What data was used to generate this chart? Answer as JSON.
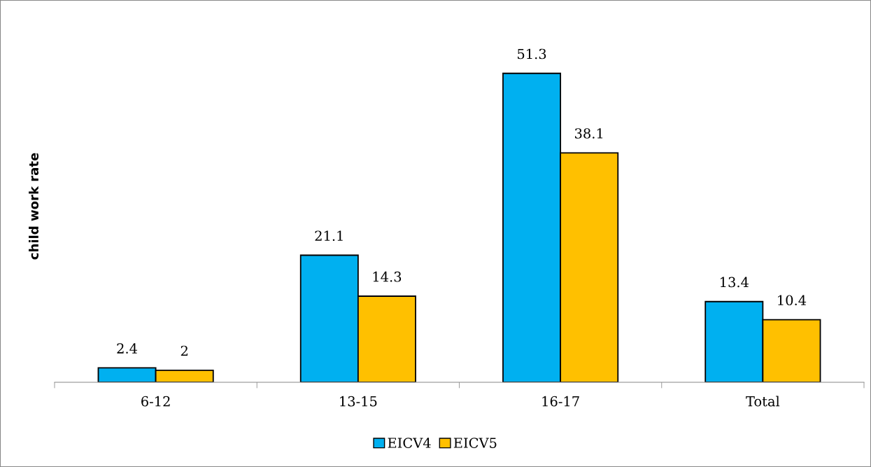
{
  "chart_data": {
    "type": "bar",
    "ylabel": "child work rate",
    "categories": [
      "6-12",
      "13-15",
      "16-17",
      "Total"
    ],
    "series": [
      {
        "name": "EICV4",
        "color": "#00b0f0",
        "values": [
          2.4,
          21.1,
          51.3,
          13.4
        ]
      },
      {
        "name": "EICV5",
        "color": "#ffc000",
        "values": [
          2,
          14.3,
          38.1,
          10.4
        ]
      }
    ],
    "data_labels": true,
    "grid": false,
    "legend": "bottom"
  }
}
